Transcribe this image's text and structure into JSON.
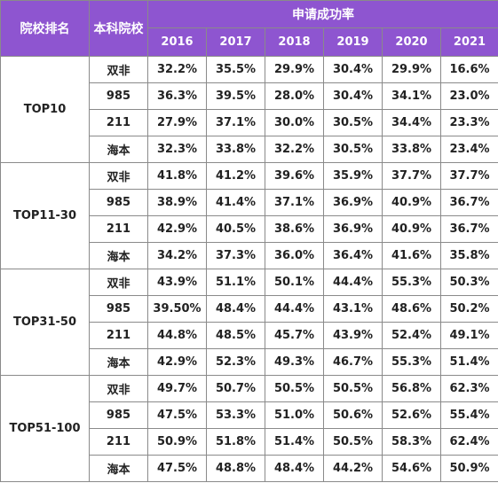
{
  "header": {
    "ranking": "院校排名",
    "undergrad": "本科院校",
    "rate": "申请成功率",
    "years": [
      "2016",
      "2017",
      "2018",
      "2019",
      "2020",
      "2021"
    ]
  },
  "groups": [
    {
      "name": "TOP10",
      "rows": [
        {
          "school": "双非",
          "values": [
            "32.2%",
            "35.5%",
            "29.9%",
            "30.4%",
            "29.9%",
            "16.6%"
          ]
        },
        {
          "school": "985",
          "values": [
            "36.3%",
            "39.5%",
            "28.0%",
            "30.4%",
            "34.1%",
            "23.0%"
          ]
        },
        {
          "school": "211",
          "values": [
            "27.9%",
            "37.1%",
            "30.0%",
            "30.5%",
            "34.4%",
            "23.3%"
          ]
        },
        {
          "school": "海本",
          "values": [
            "32.3%",
            "33.8%",
            "32.2%",
            "30.5%",
            "33.8%",
            "23.4%"
          ]
        }
      ]
    },
    {
      "name": "TOP11-30",
      "rows": [
        {
          "school": "双非",
          "values": [
            "41.8%",
            "41.2%",
            "39.6%",
            "35.9%",
            "37.7%",
            "37.7%"
          ]
        },
        {
          "school": "985",
          "values": [
            "38.9%",
            "41.4%",
            "37.1%",
            "36.9%",
            "40.9%",
            "36.7%"
          ]
        },
        {
          "school": "211",
          "values": [
            "42.9%",
            "40.5%",
            "38.6%",
            "36.9%",
            "40.9%",
            "36.7%"
          ]
        },
        {
          "school": "海本",
          "values": [
            "34.2%",
            "37.3%",
            "36.0%",
            "36.4%",
            "41.6%",
            "35.8%"
          ]
        }
      ]
    },
    {
      "name": "TOP31-50",
      "rows": [
        {
          "school": "双非",
          "values": [
            "43.9%",
            "51.1%",
            "50.1%",
            "44.4%",
            "55.3%",
            "50.3%"
          ]
        },
        {
          "school": "985",
          "values": [
            "39.50%",
            "48.4%",
            "44.4%",
            "43.1%",
            "48.6%",
            "50.2%"
          ]
        },
        {
          "school": "211",
          "values": [
            "44.8%",
            "48.5%",
            "45.7%",
            "43.9%",
            "52.4%",
            "49.1%"
          ]
        },
        {
          "school": "海本",
          "values": [
            "42.9%",
            "52.3%",
            "49.3%",
            "46.7%",
            "55.3%",
            "51.4%"
          ]
        }
      ]
    },
    {
      "name": "TOP51-100",
      "rows": [
        {
          "school": "双非",
          "values": [
            "49.7%",
            "50.7%",
            "50.5%",
            "50.5%",
            "56.8%",
            "62.3%"
          ]
        },
        {
          "school": "985",
          "values": [
            "47.5%",
            "53.3%",
            "51.0%",
            "50.6%",
            "52.6%",
            "55.4%"
          ]
        },
        {
          "school": "211",
          "values": [
            "50.9%",
            "51.8%",
            "51.4%",
            "50.5%",
            "58.3%",
            "62.4%"
          ]
        },
        {
          "school": "海本",
          "values": [
            "47.5%",
            "48.8%",
            "48.4%",
            "44.2%",
            "54.6%",
            "50.9%"
          ]
        }
      ]
    }
  ]
}
